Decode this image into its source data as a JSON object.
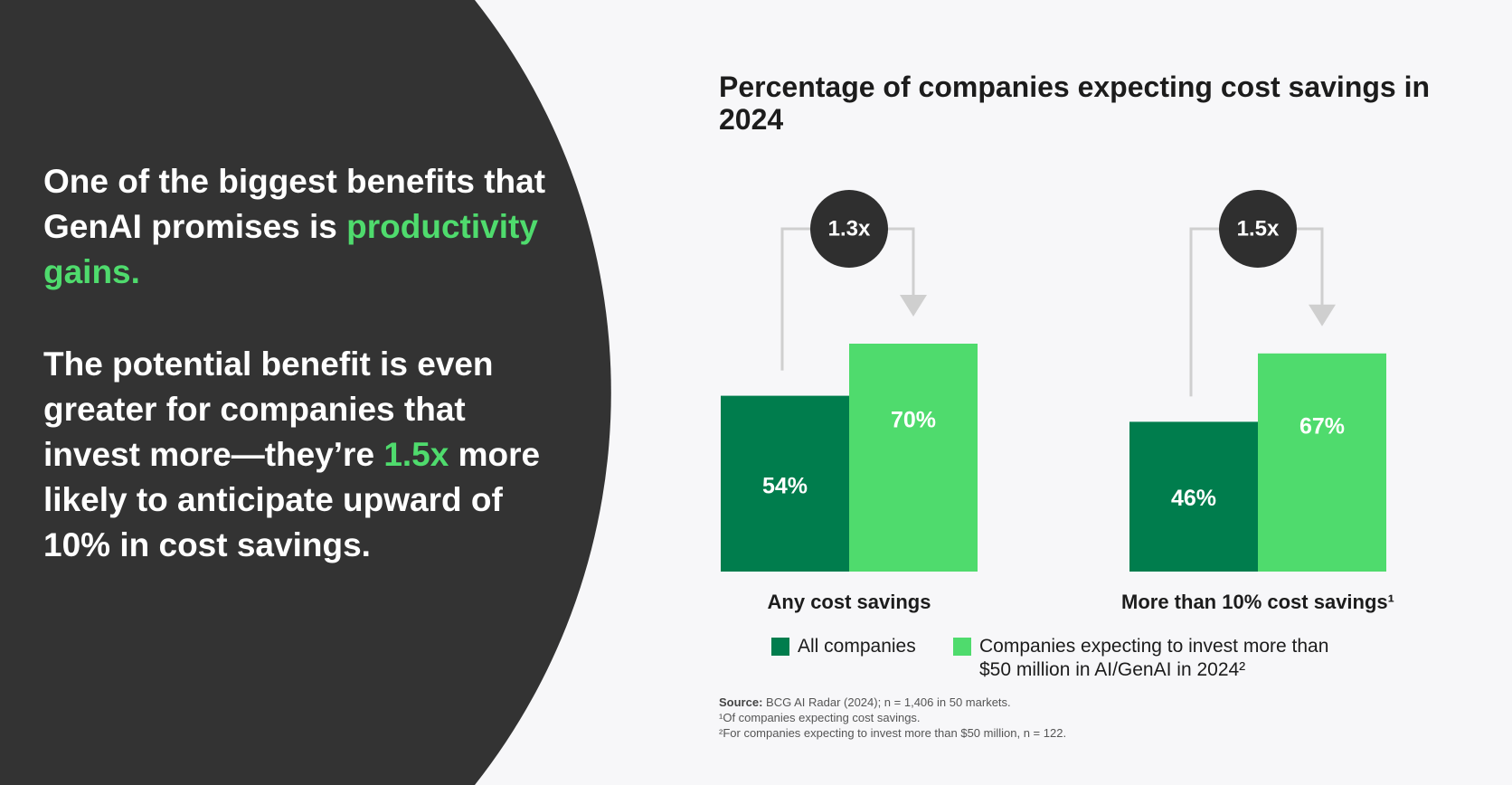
{
  "left_panel": {
    "paragraph1": {
      "text": "One of the biggest benefits that GenAI promises is",
      "highlight": "productivity gains."
    },
    "paragraph2": {
      "text_before": "The potential benefit is even greater for companies that invest more—they’re",
      "highlight": "1.5x",
      "text_after": "more likely to anticipate upward of 10% in cost savings."
    }
  },
  "chart_data": {
    "type": "bar",
    "title": "Percentage of companies expecting cost savings in 2024",
    "categories": [
      "Any cost savings",
      "More than 10% cost savings¹"
    ],
    "series": [
      {
        "name": "All companies",
        "values": [
          54,
          46
        ],
        "color": "#007d4d"
      },
      {
        "name": "Companies expecting to invest more than $50 million in AI/GenAI in 2024²",
        "values": [
          70,
          67
        ],
        "color": "#4fdb6d"
      }
    ],
    "value_labels": [
      [
        "54%",
        "46%"
      ],
      [
        "70%",
        "67%"
      ]
    ],
    "multipliers": [
      "1.3x",
      "1.5x"
    ],
    "ylim": [
      0,
      100
    ],
    "xlabel": "",
    "ylabel": "",
    "grid": false,
    "legend_position": "bottom"
  },
  "notes": {
    "source_label": "Source:",
    "source_text": "BCG AI Radar (2024); n = 1,406 in 50 markets.",
    "footnote1": "¹Of companies expecting cost savings.",
    "footnote2": "²For companies expecting to invest more than $50 million, n = 122."
  },
  "colors": {
    "dark_panel": "#333333",
    "background": "#f7f7f9",
    "accent_green": "#4fdb6d",
    "dark_green": "#007d4d",
    "bubble": "#2f2f2f",
    "connector": "#cfcfcf"
  }
}
